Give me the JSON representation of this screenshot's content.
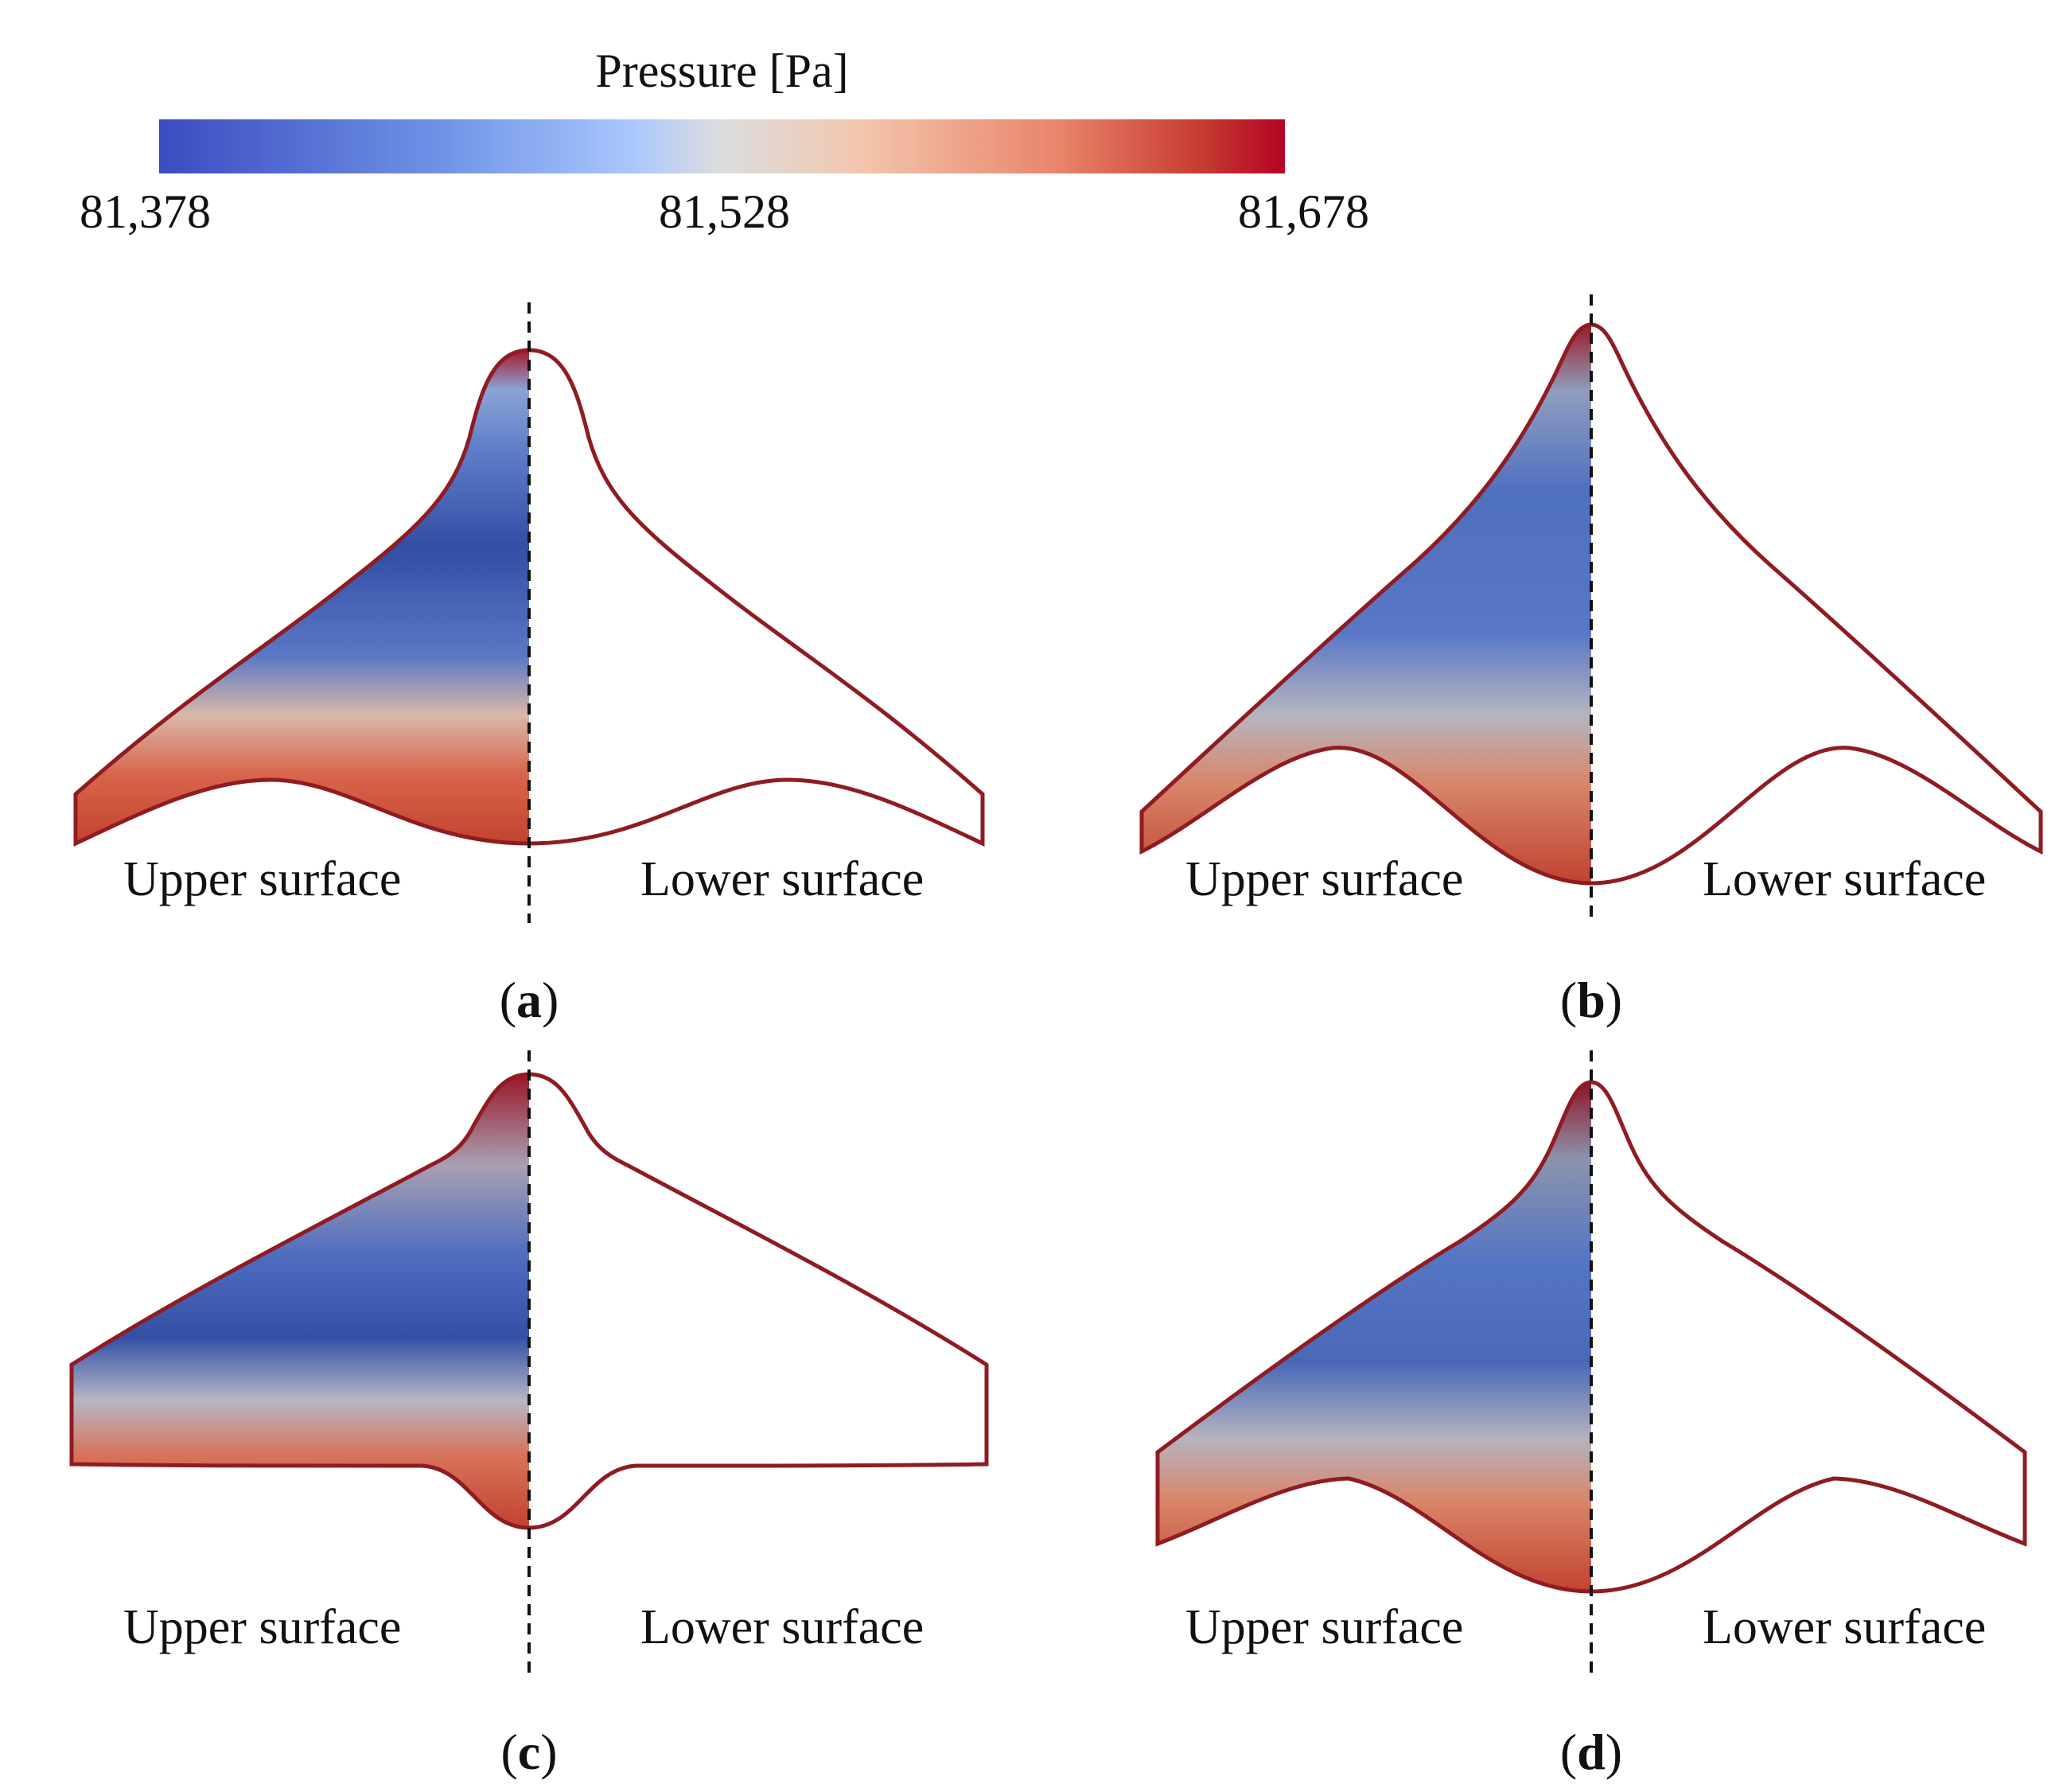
{
  "colorbar": {
    "title": "Pressure [Pa]",
    "min_label": "81,378",
    "mid_label": "81,528",
    "max_label": "81,678",
    "colors": {
      "low": "#3b4cc0",
      "mid": "#dcdddd",
      "high": "#b40426"
    }
  },
  "panels": [
    {
      "id": "a",
      "upper": "Upper surface",
      "lower": "Lower surface",
      "caption_open": "(",
      "caption_letter": "a",
      "caption_close": ")"
    },
    {
      "id": "b",
      "upper": "Upper surface",
      "lower": "Lower surface",
      "caption_open": "(",
      "caption_letter": "b",
      "caption_close": ")"
    },
    {
      "id": "c",
      "upper": "Upper surface",
      "lower": "Lower surface",
      "caption_open": "(",
      "caption_letter": "c",
      "caption_close": ")"
    },
    {
      "id": "d",
      "upper": "Upper surface",
      "lower": "Lower surface",
      "caption_open": "(",
      "caption_letter": "d",
      "caption_close": ")"
    }
  ]
}
